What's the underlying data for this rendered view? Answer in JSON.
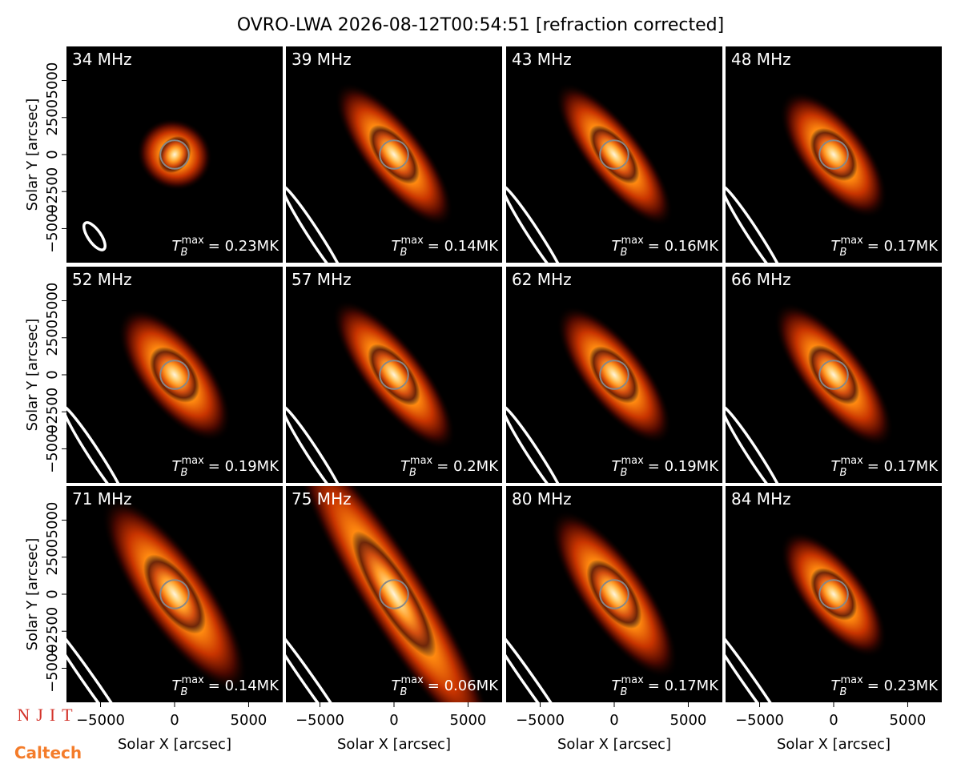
{
  "figure": {
    "title": "OVRO-LWA 2026-08-12T00:54:51 [refraction corrected]",
    "tb_symbol": "T",
    "tb_sub": "B",
    "tb_sup": "max",
    "logos": [
      "NJIT",
      "Caltech"
    ]
  },
  "chart_data": [
    {
      "type": "image",
      "title": "34 MHz",
      "annotation": "= 0.23MK",
      "xlim": [
        -7300,
        7300
      ],
      "ylim": [
        -7300,
        7300
      ],
      "ylabel": "Solar Y [arcsec]",
      "yticks": [
        {
          "value": -5000,
          "label": "−5000"
        },
        {
          "value": -2500,
          "label": "−2500"
        },
        0,
        2500,
        5000
      ]
    },
    {
      "type": "image",
      "title": "39 MHz",
      "annotation": "= 0.14MK",
      "xlim": [
        -7300,
        7300
      ],
      "ylim": [
        -7300,
        7300
      ]
    },
    {
      "type": "image",
      "title": "43 MHz",
      "annotation": "= 0.16MK",
      "xlim": [
        -7300,
        7300
      ],
      "ylim": [
        -7300,
        7300
      ]
    },
    {
      "type": "image",
      "title": "48 MHz",
      "annotation": "= 0.17MK",
      "xlim": [
        -7300,
        7300
      ],
      "ylim": [
        -7300,
        7300
      ]
    },
    {
      "type": "image",
      "title": "52 MHz",
      "annotation": "= 0.19MK",
      "xlim": [
        -7300,
        7300
      ],
      "ylim": [
        -7300,
        7300
      ],
      "ylabel": "Solar Y [arcsec]",
      "yticks": [
        {
          "value": -5000,
          "label": "−5000"
        },
        {
          "value": -2500,
          "label": "−2500"
        },
        0,
        2500,
        5000
      ]
    },
    {
      "type": "image",
      "title": "57 MHz",
      "annotation": "= 0.2MK",
      "xlim": [
        -7300,
        7300
      ],
      "ylim": [
        -7300,
        7300
      ]
    },
    {
      "type": "image",
      "title": "62 MHz",
      "annotation": "= 0.19MK",
      "xlim": [
        -7300,
        7300
      ],
      "ylim": [
        -7300,
        7300
      ]
    },
    {
      "type": "image",
      "title": "66 MHz",
      "annotation": "= 0.17MK",
      "xlim": [
        -7300,
        7300
      ],
      "ylim": [
        -7300,
        7300
      ]
    },
    {
      "type": "image",
      "title": "71 MHz",
      "annotation": "= 0.14MK",
      "xlim": [
        -7300,
        7300
      ],
      "ylim": [
        -7300,
        7300
      ],
      "ylabel": "Solar Y [arcsec]",
      "yticks": [
        {
          "value": -5000,
          "label": "−5000"
        },
        {
          "value": -2500,
          "label": "−2500"
        },
        0,
        2500,
        5000
      ],
      "xlabel": "Solar X [arcsec]",
      "xticks": [
        {
          "value": -5000,
          "label": "−5000"
        },
        0,
        5000
      ]
    },
    {
      "type": "image",
      "title": "75 MHz",
      "annotation": "= 0.06MK",
      "xlim": [
        -7300,
        7300
      ],
      "ylim": [
        -7300,
        7300
      ],
      "xlabel": "Solar X [arcsec]",
      "xticks": [
        {
          "value": -5000,
          "label": "−5000"
        },
        0,
        5000
      ]
    },
    {
      "type": "image",
      "title": "80 MHz",
      "annotation": "= 0.17MK",
      "xlim": [
        -7300,
        7300
      ],
      "ylim": [
        -7300,
        7300
      ],
      "xlabel": "Solar X [arcsec]",
      "xticks": [
        {
          "value": -5000,
          "label": "−5000"
        },
        0,
        5000
      ]
    },
    {
      "type": "image",
      "title": "84 MHz",
      "annotation": "= 0.23MK",
      "xlim": [
        -7300,
        7300
      ],
      "ylim": [
        -7300,
        7300
      ],
      "xlabel": "Solar X [arcsec]",
      "xticks": [
        {
          "value": -5000,
          "label": "−5000"
        },
        0,
        5000
      ]
    }
  ]
}
